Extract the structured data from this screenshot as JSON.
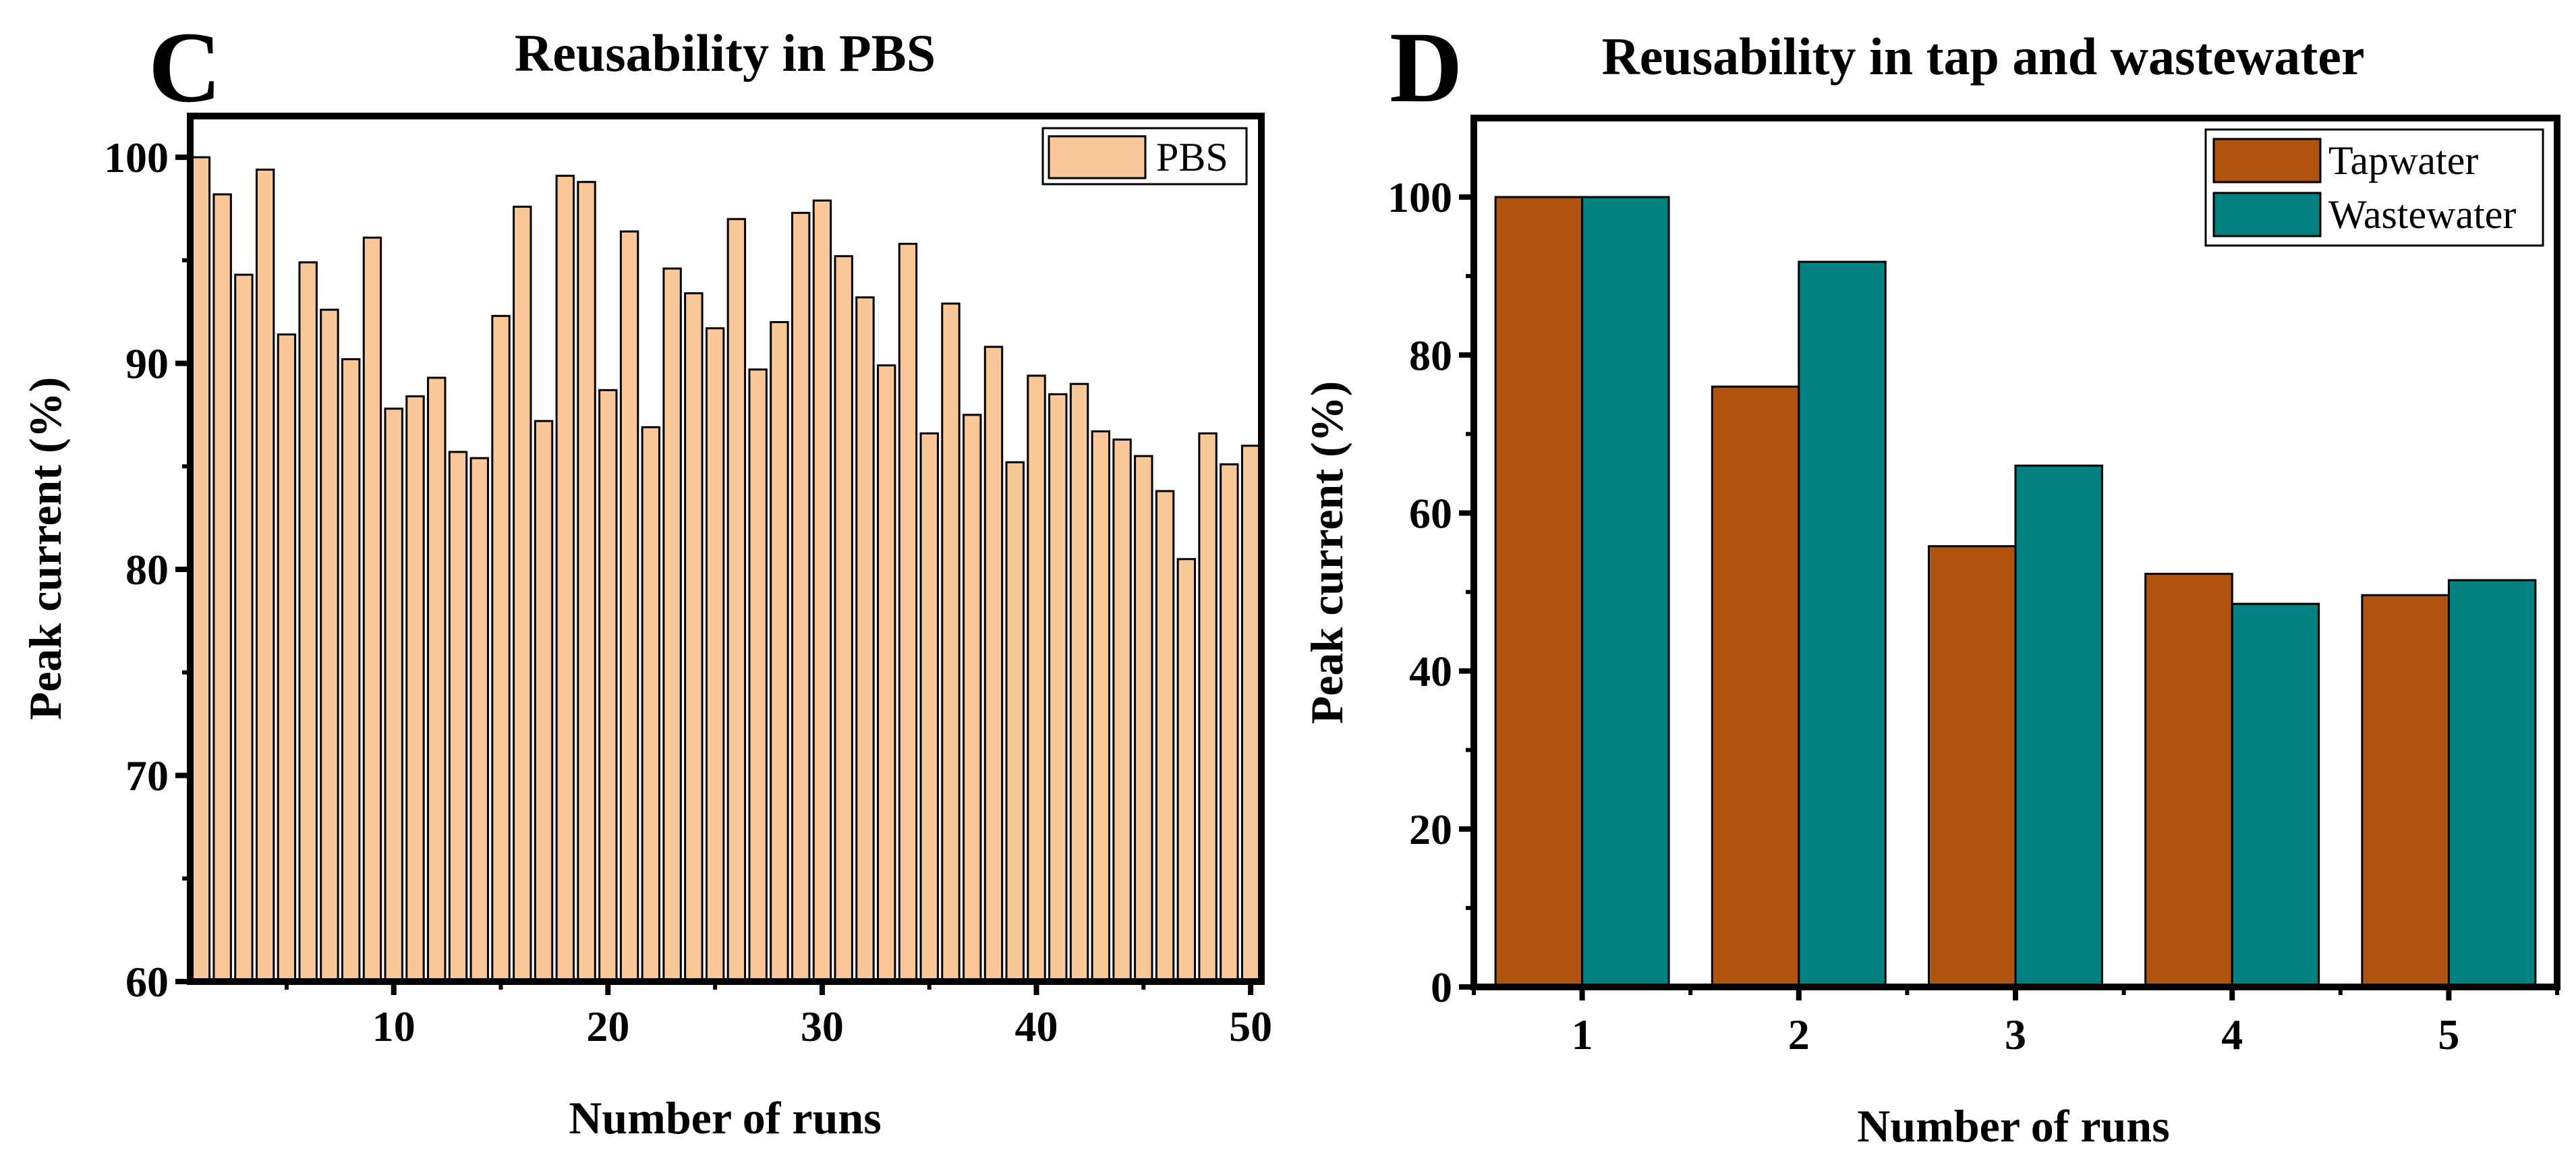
{
  "chart_data": [
    {
      "type": "bar",
      "panel": "C",
      "title": "Reusability in PBS",
      "xlabel": "Number of runs",
      "ylabel": "Peak current (%)",
      "xlim": [
        0.5,
        50.5
      ],
      "ylim": [
        60,
        102
      ],
      "xticks": [
        10,
        20,
        30,
        40,
        50
      ],
      "yticks": [
        60,
        70,
        80,
        90,
        100
      ],
      "legend_position": "top-right",
      "series": [
        {
          "name": "PBS",
          "color": "#FAC898",
          "x": [
            1,
            2,
            3,
            4,
            5,
            6,
            7,
            8,
            9,
            10,
            11,
            12,
            13,
            14,
            15,
            16,
            17,
            18,
            19,
            20,
            21,
            22,
            23,
            24,
            25,
            26,
            27,
            28,
            29,
            30,
            31,
            32,
            33,
            34,
            35,
            36,
            37,
            38,
            39,
            40,
            41,
            42,
            43,
            44,
            45,
            46,
            47,
            48,
            49,
            50
          ],
          "values": [
            100,
            98.2,
            94.3,
            99.4,
            91.4,
            94.9,
            92.6,
            90.2,
            96.1,
            87.8,
            88.4,
            89.3,
            85.7,
            85.4,
            92.3,
            97.6,
            87.2,
            99.1,
            98.8,
            88.7,
            96.4,
            86.9,
            94.6,
            93.4,
            91.7,
            97.0,
            89.7,
            92.0,
            97.3,
            97.9,
            95.2,
            93.2,
            89.9,
            95.8,
            86.6,
            92.9,
            87.5,
            90.8,
            85.2,
            89.4,
            88.5,
            89.0,
            86.7,
            86.3,
            85.5,
            83.8,
            80.5,
            86.6,
            85.1,
            86.0
          ]
        }
      ]
    },
    {
      "type": "bar",
      "panel": "D",
      "title": "Reusability in tap and wastewater",
      "xlabel": "Number of runs",
      "ylabel": "Peak current (%)",
      "categories": [
        "1",
        "2",
        "3",
        "4",
        "5"
      ],
      "ylim": [
        0,
        110
      ],
      "yticks": [
        0,
        20,
        40,
        60,
        80,
        100
      ],
      "legend_position": "top-right",
      "series": [
        {
          "name": "Tapwater",
          "color": "#B0530F",
          "values": [
            100,
            76,
            55.8,
            52.3,
            49.6
          ]
        },
        {
          "name": "Wastewater",
          "color": "#008080",
          "values": [
            100,
            91.8,
            66,
            48.5,
            51.5
          ]
        }
      ]
    }
  ]
}
